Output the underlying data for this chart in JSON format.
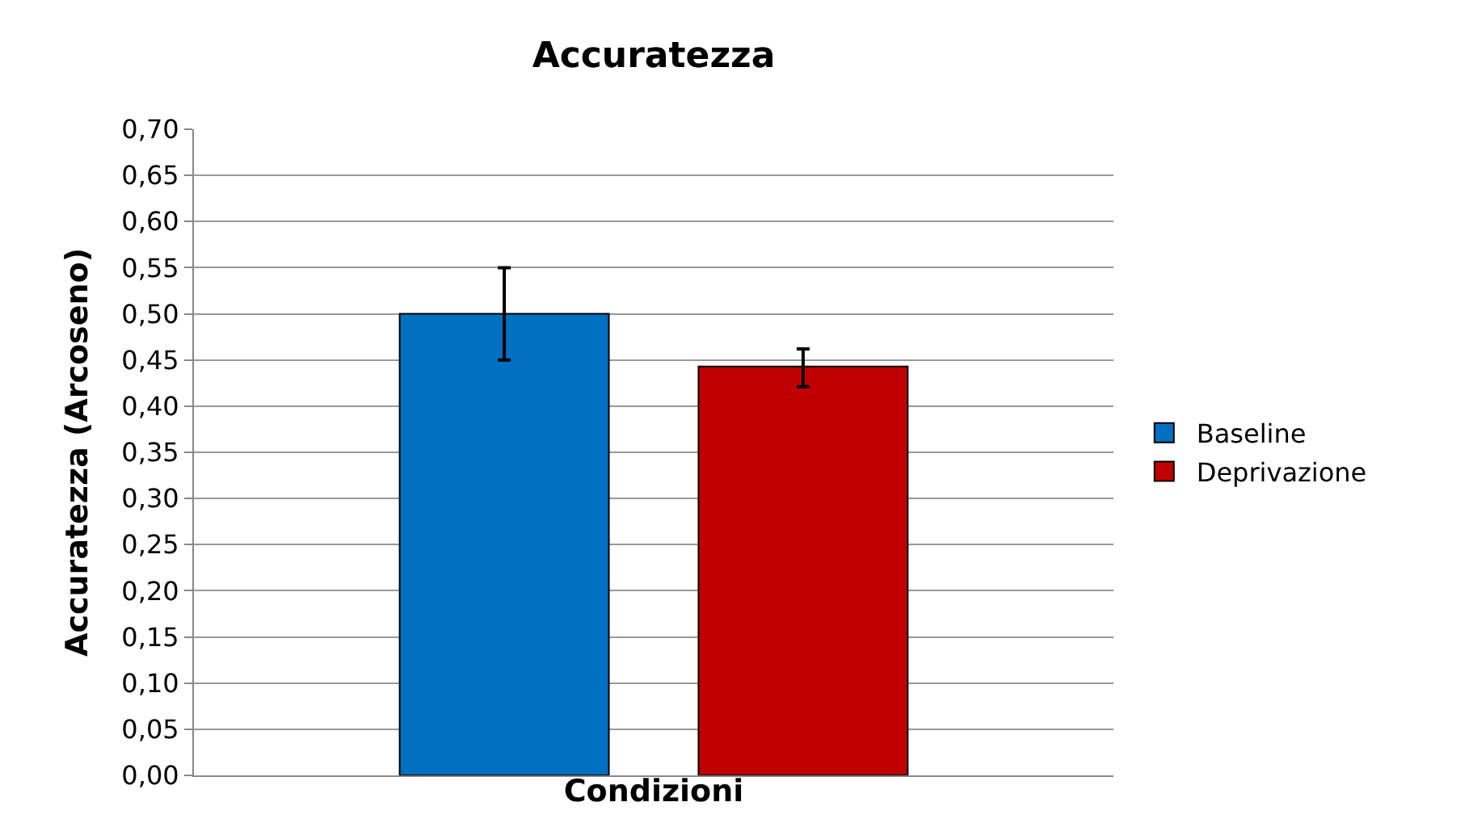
{
  "chart_data": {
    "type": "bar",
    "title": "Accuratezza",
    "xlabel": "Condizioni",
    "ylabel": "Accuratezza (Arcoseno)",
    "categories": [
      null
    ],
    "series": [
      {
        "name": "Baseline",
        "color": "#0070c0",
        "values": [
          0.5
        ],
        "errors": [
          0.05
        ]
      },
      {
        "name": "Deprivazione",
        "color": "#c00000",
        "values": [
          0.443
        ],
        "errors": [
          [
            0.421,
            0.462
          ]
        ]
      }
    ],
    "ylim": [
      0,
      0.7
    ],
    "yticks": [
      {
        "value": 0,
        "label": "0,00"
      },
      {
        "value": 0.05,
        "label": "0,05"
      },
      {
        "value": 0.1,
        "label": "0,10"
      },
      {
        "value": 0.15,
        "label": "0,15"
      },
      {
        "value": 0.2,
        "label": "0,20"
      },
      {
        "value": 0.25,
        "label": "0,25"
      },
      {
        "value": 0.3,
        "label": "0,30"
      },
      {
        "value": 0.35,
        "label": "0,35"
      },
      {
        "value": 0.4,
        "label": "0,40"
      },
      {
        "value": 0.45,
        "label": "0,45"
      },
      {
        "value": 0.5,
        "label": "0,50"
      },
      {
        "value": 0.55,
        "label": "0,55"
      },
      {
        "value": 0.6,
        "label": "0,60"
      },
      {
        "value": 0.65,
        "label": "0,65"
      },
      {
        "value": 0.7,
        "label": "0,70"
      }
    ],
    "grid": "y",
    "legend": "right",
    "tick_labels": "y"
  }
}
